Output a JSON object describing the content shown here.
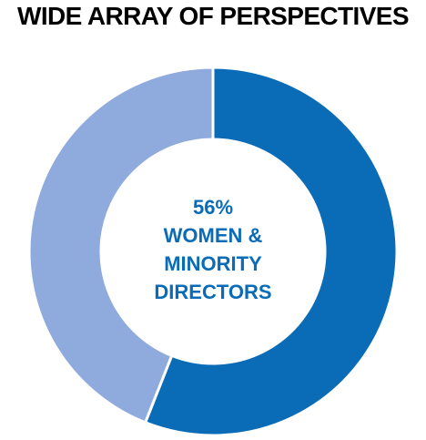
{
  "title": "WIDE ARRAY OF PERSPECTIVES",
  "chart_data": {
    "type": "pie",
    "title": "WIDE ARRAY OF PERSPECTIVES",
    "slices": [
      {
        "value": 56,
        "color": "#0a6bb6"
      },
      {
        "value": 44,
        "color": "#8faadc"
      }
    ],
    "center_text": {
      "percent": "56%",
      "line1": "WOMEN &",
      "line2": "MINORITY",
      "line3": "DIRECTORS"
    }
  }
}
